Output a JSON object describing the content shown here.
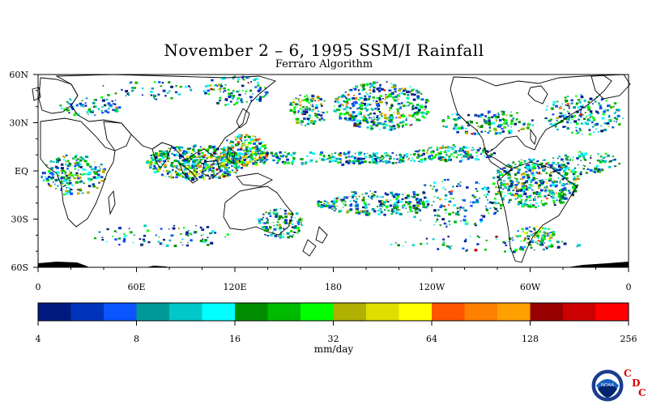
{
  "title": "November 2 – 6, 1995 SSM/I Rainfall",
  "subtitle": "Ferraro Algorithm",
  "map": {
    "lat_labels": [
      "60N",
      "30N",
      "EQ",
      "30S",
      "60S"
    ],
    "lon_labels": [
      "0",
      "60E",
      "120E",
      "180",
      "120W",
      "60W",
      "0"
    ]
  },
  "colorbar": {
    "colors": [
      "#001a80",
      "#0033bb",
      "#0a55ff",
      "#009999",
      "#00c8c8",
      "#00ffff",
      "#008c00",
      "#00bb00",
      "#00ff00",
      "#b0b000",
      "#dede00",
      "#ffff00",
      "#ff5500",
      "#ff7f00",
      "#ffa000",
      "#990000",
      "#cc0000",
      "#ff0000"
    ],
    "tick_labels": [
      "4",
      "8",
      "16",
      "32",
      "64",
      "128",
      "256"
    ],
    "units": "mm/day"
  },
  "logo": {
    "name": "NOAA",
    "letters": [
      "C",
      "D",
      "C"
    ]
  }
}
